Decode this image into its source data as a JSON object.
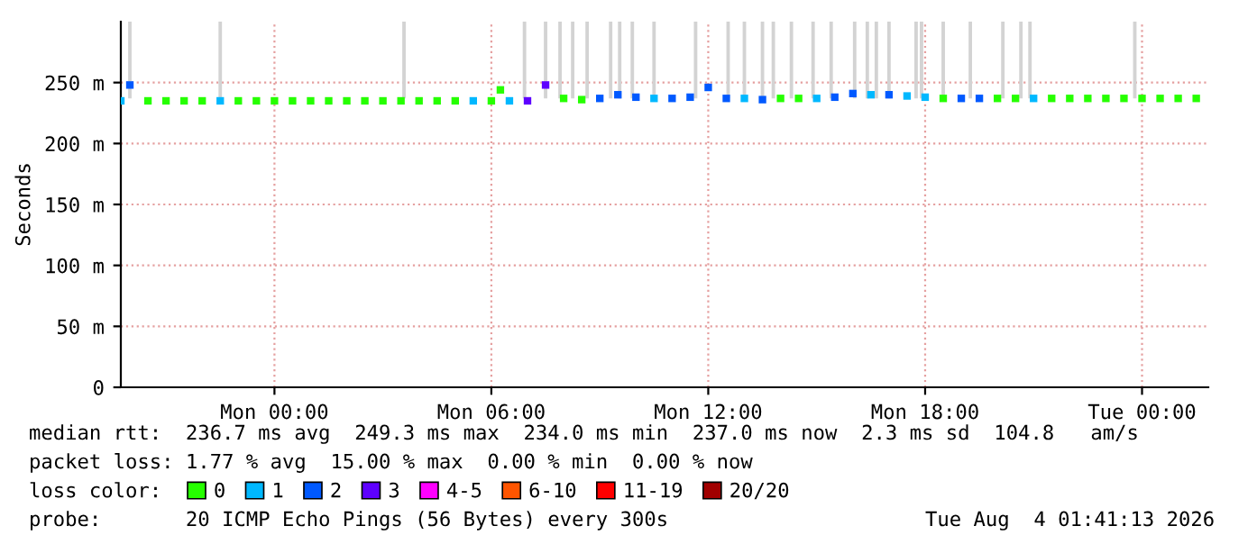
{
  "chart_data": {
    "type": "scatter",
    "ylabel": "Seconds",
    "legend_title": "loss color:",
    "legend": "bottom",
    "grid": true,
    "marker": "square",
    "xlim": [
      "2026-08-02T19:45",
      "2026-08-04T01:50"
    ],
    "xticks": [
      {
        "value": "2026-08-03T00:00",
        "label": "Mon 00:00"
      },
      {
        "value": "2026-08-03T06:00",
        "label": "Mon 06:00"
      },
      {
        "value": "2026-08-03T12:00",
        "label": "Mon 12:00"
      },
      {
        "value": "2026-08-03T18:00",
        "label": "Mon 18:00"
      },
      {
        "value": "2026-08-04T00:00",
        "label": "Tue 00:00"
      }
    ],
    "ylim": [
      0,
      300
    ],
    "yticks": [
      0,
      {
        "value": 50,
        "label": "50 m"
      },
      {
        "value": 100,
        "label": "100 m"
      },
      {
        "value": 150,
        "label": "150 m"
      },
      {
        "value": 200,
        "label": "200 m"
      },
      {
        "value": 250,
        "label": "250 m"
      }
    ],
    "x": [
      "2026-08-02T19:45",
      "2026-08-02T20:00",
      "2026-08-02T20:30",
      "2026-08-02T21:00",
      "2026-08-02T21:30",
      "2026-08-02T22:00",
      "2026-08-02T22:30",
      "2026-08-02T23:00",
      "2026-08-02T23:30",
      "2026-08-03T00:00",
      "2026-08-03T00:30",
      "2026-08-03T01:00",
      "2026-08-03T01:30",
      "2026-08-03T02:00",
      "2026-08-03T02:30",
      "2026-08-03T03:00",
      "2026-08-03T03:30",
      "2026-08-03T04:00",
      "2026-08-03T04:30",
      "2026-08-03T05:00",
      "2026-08-03T05:30",
      "2026-08-03T06:00",
      "2026-08-03T06:15",
      "2026-08-03T06:30",
      "2026-08-03T07:00",
      "2026-08-03T07:30",
      "2026-08-03T08:00",
      "2026-08-03T08:30",
      "2026-08-03T09:00",
      "2026-08-03T09:30",
      "2026-08-03T10:00",
      "2026-08-03T10:30",
      "2026-08-03T11:00",
      "2026-08-03T11:30",
      "2026-08-03T12:00",
      "2026-08-03T12:30",
      "2026-08-03T13:00",
      "2026-08-03T13:30",
      "2026-08-03T14:00",
      "2026-08-03T14:30",
      "2026-08-03T15:00",
      "2026-08-03T15:30",
      "2026-08-03T16:00",
      "2026-08-03T16:30",
      "2026-08-03T17:00",
      "2026-08-03T17:30",
      "2026-08-03T18:00",
      "2026-08-03T18:30",
      "2026-08-03T19:00",
      "2026-08-03T19:30",
      "2026-08-03T20:00",
      "2026-08-03T20:30",
      "2026-08-03T21:00",
      "2026-08-03T21:30",
      "2026-08-03T22:00",
      "2026-08-03T22:30",
      "2026-08-03T23:00",
      "2026-08-03T23:30",
      "2026-08-04T00:00",
      "2026-08-04T00:30",
      "2026-08-04T01:00",
      "2026-08-04T01:30"
    ],
    "series": [
      {
        "type": "bar",
        "color": "#d3d3d3",
        "x": [
          "2026-08-02T20:00",
          "2026-08-02T22:30",
          "2026-08-03T03:35",
          "2026-08-03T06:55",
          "2026-08-03T07:30",
          "2026-08-03T07:54",
          "2026-08-03T08:15",
          "2026-08-03T08:39",
          "2026-08-03T09:18",
          "2026-08-03T09:33",
          "2026-08-03T09:54",
          "2026-08-03T10:30",
          "2026-08-03T11:39",
          "2026-08-03T12:33",
          "2026-08-03T13:00",
          "2026-08-03T13:30",
          "2026-08-03T13:48",
          "2026-08-03T14:18",
          "2026-08-03T14:54",
          "2026-08-03T15:24",
          "2026-08-03T16:03",
          "2026-08-03T16:24",
          "2026-08-03T16:39",
          "2026-08-03T17:00",
          "2026-08-03T17:45",
          "2026-08-03T17:54",
          "2026-08-03T18:30",
          "2026-08-03T19:15",
          "2026-08-03T20:09",
          "2026-08-03T20:39",
          "2026-08-03T20:54",
          "2026-08-03T23:48"
        ],
        "base": [
          237,
          237,
          237,
          237,
          237,
          237,
          237,
          237,
          237,
          237,
          237,
          237,
          237,
          237,
          237,
          237,
          237,
          237,
          237,
          237,
          237,
          237,
          237,
          237,
          237,
          237,
          237,
          237,
          237,
          237,
          237,
          237
        ],
        "values": [
          63,
          63,
          63,
          63,
          63,
          63,
          63,
          63,
          63,
          63,
          63,
          63,
          63,
          63,
          63,
          63,
          63,
          63,
          63,
          63,
          63,
          63,
          63,
          63,
          63,
          63,
          63,
          63,
          63,
          63,
          63,
          63
        ]
      },
      {
        "name": "0",
        "color": "#26ff00",
        "values": [
          null,
          null,
          235,
          235,
          235,
          235,
          null,
          235,
          235,
          235,
          235,
          235,
          235,
          235,
          235,
          235,
          235,
          235,
          235,
          235,
          null,
          235,
          244,
          null,
          null,
          null,
          237,
          236,
          null,
          null,
          null,
          null,
          null,
          null,
          null,
          null,
          null,
          null,
          237,
          237,
          null,
          null,
          null,
          null,
          null,
          null,
          null,
          237,
          null,
          null,
          237,
          237,
          null,
          237,
          237,
          237,
          237,
          237,
          237,
          237,
          237,
          237
        ]
      },
      {
        "name": "1",
        "color": "#00b8ff",
        "values": [
          235,
          null,
          null,
          null,
          null,
          null,
          235,
          null,
          null,
          null,
          null,
          null,
          null,
          null,
          null,
          null,
          null,
          null,
          null,
          null,
          235,
          null,
          null,
          235,
          null,
          null,
          null,
          null,
          null,
          null,
          null,
          237,
          null,
          null,
          null,
          null,
          237,
          null,
          null,
          null,
          237,
          null,
          null,
          240,
          null,
          239,
          238,
          null,
          null,
          null,
          null,
          null,
          237,
          null,
          null,
          null,
          null,
          null,
          null,
          null,
          null,
          null
        ]
      },
      {
        "name": "2",
        "color": "#0059ff",
        "values": [
          null,
          248,
          null,
          null,
          null,
          null,
          null,
          null,
          null,
          null,
          null,
          null,
          null,
          null,
          null,
          null,
          null,
          null,
          null,
          null,
          null,
          null,
          null,
          null,
          null,
          null,
          null,
          null,
          237,
          240,
          238,
          null,
          237,
          238,
          246,
          237,
          null,
          236,
          null,
          null,
          null,
          238,
          241,
          null,
          240,
          null,
          null,
          null,
          237,
          237,
          null,
          null,
          null,
          null,
          null,
          null,
          null,
          null,
          null,
          null,
          null,
          null
        ]
      },
      {
        "name": "3",
        "color": "#5e00ff",
        "values": [
          null,
          null,
          null,
          null,
          null,
          null,
          null,
          null,
          null,
          null,
          null,
          null,
          null,
          null,
          null,
          null,
          null,
          null,
          null,
          null,
          null,
          null,
          null,
          null,
          235,
          248,
          null,
          null,
          null,
          null,
          null,
          null,
          null,
          null,
          null,
          null,
          null,
          null,
          null,
          null,
          null,
          null,
          null,
          null,
          null,
          null,
          null,
          null,
          null,
          null,
          null,
          null,
          null,
          null,
          null,
          null,
          null,
          null,
          null,
          null,
          null,
          null
        ]
      },
      {
        "name": "4-5",
        "color": "#ff00ff",
        "values": [
          null,
          null,
          null,
          null,
          null,
          null,
          null,
          null,
          null,
          null,
          null,
          null,
          null,
          null,
          null,
          null,
          null,
          null,
          null,
          null,
          null,
          null,
          null,
          null,
          null,
          null,
          null,
          null,
          null,
          null,
          null,
          null,
          null,
          null,
          null,
          null,
          null,
          null,
          null,
          null,
          null,
          null,
          null,
          null,
          null,
          null,
          null,
          null,
          null,
          null,
          null,
          null,
          null,
          null,
          null,
          null,
          null,
          null,
          null,
          null,
          null,
          null
        ]
      },
      {
        "name": "6-10",
        "color": "#ff5500",
        "values": [
          null,
          null,
          null,
          null,
          null,
          null,
          null,
          null,
          null,
          null,
          null,
          null,
          null,
          null,
          null,
          null,
          null,
          null,
          null,
          null,
          null,
          null,
          null,
          null,
          null,
          null,
          null,
          null,
          null,
          null,
          null,
          null,
          null,
          null,
          null,
          null,
          null,
          null,
          null,
          null,
          null,
          null,
          null,
          null,
          null,
          null,
          null,
          null,
          null,
          null,
          null,
          null,
          null,
          null,
          null,
          null,
          null,
          null,
          null,
          null,
          null,
          null
        ]
      },
      {
        "name": "11-19",
        "color": "#ff0000",
        "values": [
          null,
          null,
          null,
          null,
          null,
          null,
          null,
          null,
          null,
          null,
          null,
          null,
          null,
          null,
          null,
          null,
          null,
          null,
          null,
          null,
          null,
          null,
          null,
          null,
          null,
          null,
          null,
          null,
          null,
          null,
          null,
          null,
          null,
          null,
          null,
          null,
          null,
          null,
          null,
          null,
          null,
          null,
          null,
          null,
          null,
          null,
          null,
          null,
          null,
          null,
          null,
          null,
          null,
          null,
          null,
          null,
          null,
          null,
          null,
          null,
          null,
          null
        ]
      },
      {
        "name": "20/20",
        "color": "#a10000",
        "values": [
          null,
          null,
          null,
          null,
          null,
          null,
          null,
          null,
          null,
          null,
          null,
          null,
          null,
          null,
          null,
          null,
          null,
          null,
          null,
          null,
          null,
          null,
          null,
          null,
          null,
          null,
          null,
          null,
          null,
          null,
          null,
          null,
          null,
          null,
          null,
          null,
          null,
          null,
          null,
          null,
          null,
          null,
          null,
          null,
          null,
          null,
          null,
          null,
          null,
          null,
          null,
          null,
          null,
          null,
          null,
          null,
          null,
          null,
          null,
          null,
          null,
          null
        ]
      }
    ],
    "annotations": [
      "median rtt:  236.7 ms avg  249.3 ms max  234.0 ms min  237.0 ms now  2.3 ms sd  104.8   am/s",
      "packet loss: 1.77 % avg  15.00 % max  0.00 % min  0.00 % now",
      "probe:       20 ICMP Echo Pings (56 Bytes) every 300s",
      "Tue Aug  4 01:41:13 2026"
    ]
  }
}
